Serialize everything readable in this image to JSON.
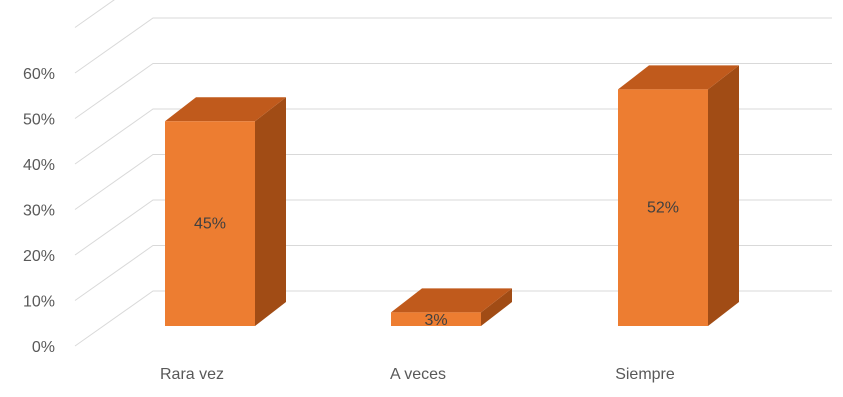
{
  "chart_data": {
    "type": "bar",
    "style": "3d-column",
    "categories": [
      "Rara vez",
      "A veces",
      "Siempre"
    ],
    "values": [
      45,
      3,
      52
    ],
    "data_labels": [
      "45%",
      "3%",
      "52%"
    ],
    "y_ticks": [
      "0%",
      "10%",
      "20%",
      "30%",
      "40%",
      "50%",
      "60%"
    ],
    "ylim": [
      0,
      70
    ],
    "grid": true,
    "colors": {
      "front": "#ED7D31",
      "side": "#A14C15",
      "top": "#C05A1C",
      "grid": "#D9D9D9",
      "text": "#595959"
    }
  }
}
